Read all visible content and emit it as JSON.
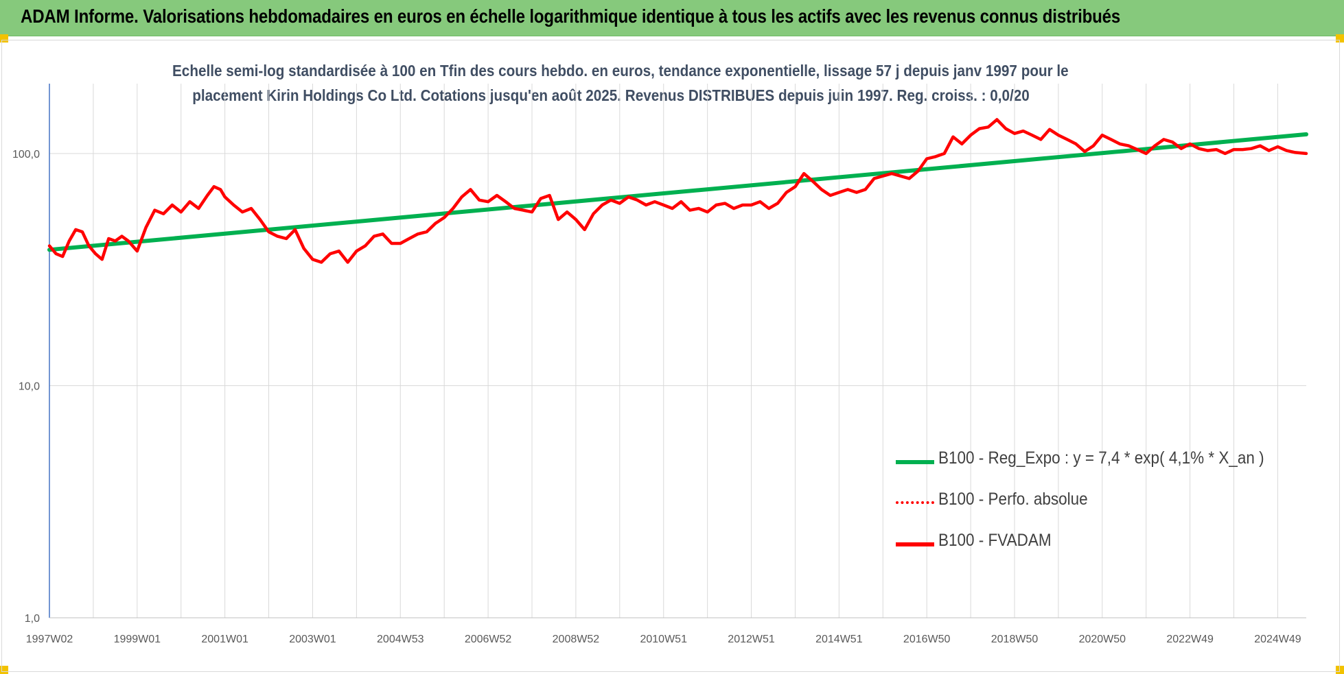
{
  "banner": {
    "title": "ADAM Informe. Valorisations hebdomadaires en euros en échelle logarithmique identique à tous les actifs avec les revenus connus distribués"
  },
  "chart_data": {
    "type": "line",
    "title_line1": "Echelle semi-log standardisée à 100 en Tfin des cours hebdo. en euros, tendance exponentielle, lissage 57 j depuis janv 1997 pour le",
    "title_line2": "placement Kirin Holdings Co Ltd. Cotations jusqu'en août 2025. Revenus DISTRIBUES depuis juin 1997. Reg. croiss. : 0,0/20",
    "y_scale": "log",
    "ylim": [
      1,
      200
    ],
    "xlim": [
      1997.0,
      2025.65
    ],
    "y_ticks": [
      {
        "value": 1,
        "label": "1,0"
      },
      {
        "value": 10,
        "label": "10,0"
      },
      {
        "value": 100,
        "label": "100,0"
      }
    ],
    "x_ticks": [
      {
        "value": 1997.0,
        "label": "1997W02"
      },
      {
        "value": 1999.0,
        "label": "1999W01"
      },
      {
        "value": 2001.0,
        "label": "2001W01"
      },
      {
        "value": 2003.0,
        "label": "2003W01"
      },
      {
        "value": 2005.0,
        "label": "2004W53"
      },
      {
        "value": 2007.0,
        "label": "2006W52"
      },
      {
        "value": 2009.0,
        "label": "2008W52"
      },
      {
        "value": 2011.0,
        "label": "2010W51"
      },
      {
        "value": 2013.0,
        "label": "2012W51"
      },
      {
        "value": 2015.0,
        "label": "2014W51"
      },
      {
        "value": 2017.0,
        "label": "2016W50"
      },
      {
        "value": 2019.0,
        "label": "2018W50"
      },
      {
        "value": 2021.0,
        "label": "2020W50"
      },
      {
        "value": 2023.0,
        "label": "2022W49"
      },
      {
        "value": 2025.0,
        "label": "2024W49"
      }
    ],
    "grid": "vertical",
    "legend_position": "lower-right",
    "series": [
      {
        "name": "B100 - Reg_Expo : y = 7,4 * exp( 4,1% *  X_an )",
        "color": "#00b050",
        "style": "solid",
        "x": [
          1997.0,
          2025.65
        ],
        "y": [
          38.5,
          121
        ]
      },
      {
        "name": "B100 - Perfo. absolue",
        "color": "#ff0000",
        "style": "dotted",
        "x": [],
        "y": []
      },
      {
        "name": "B100 - FVADAM",
        "color": "#ff0000",
        "style": "solid",
        "x": [
          1997.0,
          1997.15,
          1997.3,
          1997.45,
          1997.6,
          1997.75,
          1997.9,
          1998.05,
          1998.2,
          1998.35,
          1998.5,
          1998.65,
          1998.8,
          1999.0,
          1999.2,
          1999.4,
          1999.6,
          1999.8,
          2000.0,
          2000.2,
          2000.4,
          2000.6,
          2000.75,
          2000.9,
          2001.0,
          2001.2,
          2001.4,
          2001.6,
          2001.8,
          2002.0,
          2002.2,
          2002.4,
          2002.6,
          2002.8,
          2003.0,
          2003.2,
          2003.4,
          2003.6,
          2003.8,
          2004.0,
          2004.2,
          2004.4,
          2004.6,
          2004.8,
          2005.0,
          2005.2,
          2005.4,
          2005.6,
          2005.8,
          2006.0,
          2006.2,
          2006.4,
          2006.6,
          2006.8,
          2007.0,
          2007.2,
          2007.4,
          2007.6,
          2007.8,
          2008.0,
          2008.2,
          2008.4,
          2008.6,
          2008.8,
          2009.0,
          2009.2,
          2009.4,
          2009.6,
          2009.8,
          2010.0,
          2010.2,
          2010.4,
          2010.6,
          2010.8,
          2011.0,
          2011.2,
          2011.4,
          2011.6,
          2011.8,
          2012.0,
          2012.2,
          2012.4,
          2012.6,
          2012.8,
          2013.0,
          2013.2,
          2013.4,
          2013.6,
          2013.8,
          2014.0,
          2014.2,
          2014.4,
          2014.6,
          2014.8,
          2015.0,
          2015.2,
          2015.4,
          2015.6,
          2015.8,
          2016.0,
          2016.2,
          2016.4,
          2016.6,
          2016.8,
          2017.0,
          2017.2,
          2017.4,
          2017.6,
          2017.8,
          2018.0,
          2018.2,
          2018.4,
          2018.6,
          2018.8,
          2019.0,
          2019.2,
          2019.4,
          2019.6,
          2019.8,
          2020.0,
          2020.2,
          2020.4,
          2020.6,
          2020.8,
          2021.0,
          2021.2,
          2021.4,
          2021.6,
          2021.8,
          2022.0,
          2022.2,
          2022.4,
          2022.6,
          2022.8,
          2023.0,
          2023.2,
          2023.4,
          2023.6,
          2023.8,
          2024.0,
          2024.2,
          2024.4,
          2024.6,
          2024.8,
          2025.0,
          2025.2,
          2025.4,
          2025.65
        ],
        "y": [
          40,
          37,
          36,
          42,
          47,
          46,
          40,
          37,
          35,
          43,
          42,
          44,
          42,
          38,
          48,
          57,
          55,
          60,
          56,
          62,
          58,
          66,
          72,
          70,
          65,
          60,
          56,
          58,
          52,
          46,
          44,
          43,
          47,
          39,
          35,
          34,
          37,
          38,
          34,
          38,
          40,
          44,
          45,
          41,
          41,
          43,
          45,
          46,
          50,
          53,
          58,
          65,
          70,
          63,
          62,
          66,
          62,
          58,
          57,
          56,
          64,
          66,
          52,
          56,
          52,
          47,
          55,
          60,
          63,
          61,
          65,
          63,
          60,
          62,
          60,
          58,
          62,
          57,
          58,
          56,
          60,
          61,
          58,
          60,
          60,
          62,
          58,
          61,
          68,
          72,
          82,
          76,
          70,
          66,
          68,
          70,
          68,
          70,
          78,
          80,
          82,
          80,
          78,
          84,
          95,
          97,
          100,
          118,
          110,
          120,
          128,
          130,
          140,
          128,
          122,
          125,
          120,
          115,
          127,
          120,
          115,
          110,
          102,
          108,
          120,
          115,
          110,
          108,
          104,
          100,
          108,
          115,
          112,
          105,
          110,
          105,
          103,
          104,
          100,
          104,
          104,
          105,
          108,
          103,
          107,
          103,
          101,
          100
        ]
      }
    ]
  }
}
